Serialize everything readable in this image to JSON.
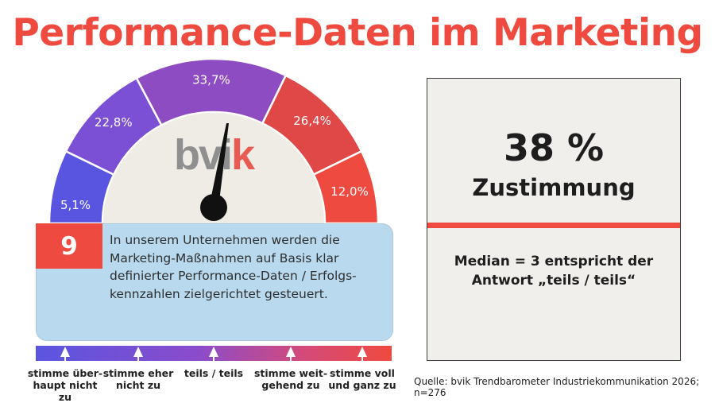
{
  "title": "Performance-Daten im Marketing",
  "colors": {
    "title": "#ee4a3f",
    "accent_red": "#ee4a3f",
    "gauge_inner": "#efece5",
    "question_card": "#b8d9ee",
    "needle": "#111111",
    "logo_gray": "#8f8f8f",
    "logo_red": "#e85b53",
    "segment_colors": [
      "#5a55e0",
      "#7b50d4",
      "#8e4cc2",
      "#e04747",
      "#ef4a3f"
    ]
  },
  "logo": {
    "text_gray": "bvi",
    "text_red": "k"
  },
  "chart_data": {
    "type": "gauge",
    "categories": [
      "stimme überhaupt nicht zu",
      "stimme eher nicht zu",
      "teils / teils",
      "stimme weitgehend zu",
      "stimme voll und ganz zu"
    ],
    "values": [
      5.1,
      22.8,
      33.7,
      26.4,
      12.0
    ],
    "value_labels": [
      "5,1%",
      "22,8%",
      "33,7%",
      "26,4%",
      "12,0%"
    ],
    "unit": "%",
    "median": 3
  },
  "question": {
    "number": "9",
    "text": "In unserem Unternehmen werden die Marketing-Maßnahmen auf Basis klar definierter Performance-Daten / Erfolgs-kennzahlen zielgerichtet gesteuert."
  },
  "scale_labels": [
    "stimme über-\nhaupt nicht zu",
    "stimme eher\nnicht zu",
    "teils / teils",
    "stimme weit-\ngehend zu",
    "stimme voll\nund ganz zu"
  ],
  "summary": {
    "percent": "38 %",
    "label": "Zustimmung",
    "median_text": "Median = 3 entspricht der\nAntwort „teils / teils“"
  },
  "source": "Quelle: bvik Trendbarometer Industriekommunikation 2026; n=276"
}
